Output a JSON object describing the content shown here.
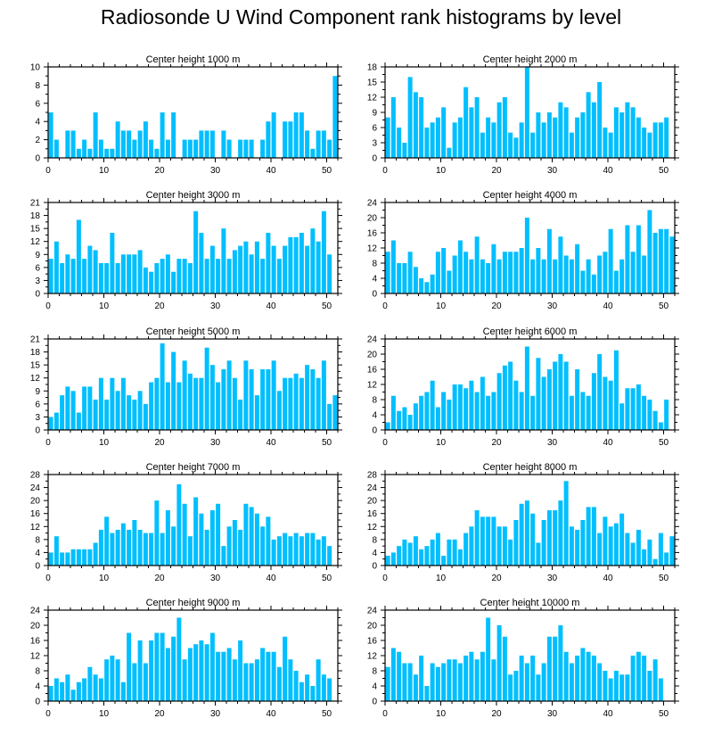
{
  "title": "Radiosonde U Wind Component rank histograms by level",
  "colors": {
    "bar": "#00BFFF",
    "axis": "#000000",
    "background": "#FFFFFF"
  },
  "chart_data": [
    {
      "type": "bar",
      "title": "Center height 1000 m",
      "xlim": [
        0,
        52
      ],
      "ylim": [
        0,
        10
      ],
      "xticks": [
        0,
        10,
        20,
        30,
        40,
        50
      ],
      "yticks": [
        0,
        2,
        4,
        6,
        8,
        10
      ],
      "values": [
        5,
        2,
        0,
        3,
        3,
        1,
        2,
        1,
        5,
        2,
        1,
        1,
        4,
        3,
        3,
        2,
        3,
        4,
        2,
        1,
        5,
        2,
        5,
        0,
        2,
        2,
        2,
        3,
        3,
        3,
        0,
        3,
        2,
        0,
        2,
        2,
        2,
        0,
        2,
        4,
        5,
        0,
        4,
        4,
        5,
        5,
        3,
        1,
        3,
        3,
        2,
        9
      ]
    },
    {
      "type": "bar",
      "title": "Center height 2000 m",
      "xlim": [
        0,
        52
      ],
      "ylim": [
        0,
        18
      ],
      "xticks": [
        0,
        10,
        20,
        30,
        40,
        50
      ],
      "yticks": [
        0,
        3,
        6,
        9,
        12,
        15,
        18
      ],
      "values": [
        8,
        12,
        6,
        3,
        16,
        13,
        12,
        6,
        7,
        8,
        10,
        2,
        7,
        8,
        14,
        10,
        12,
        5,
        8,
        7,
        11,
        12,
        5,
        4,
        7,
        18,
        5,
        9,
        7,
        9,
        8,
        11,
        10,
        5,
        8,
        9,
        13,
        11,
        15,
        6,
        5,
        10,
        9,
        11,
        10,
        8,
        6,
        5,
        7,
        7,
        8,
        0
      ]
    },
    {
      "type": "bar",
      "title": "Center height 3000 m",
      "xlim": [
        0,
        52
      ],
      "ylim": [
        0,
        21
      ],
      "xticks": [
        0,
        10,
        20,
        30,
        40,
        50
      ],
      "yticks": [
        0,
        3,
        6,
        9,
        12,
        15,
        18,
        21
      ],
      "values": [
        8,
        12,
        7,
        9,
        8,
        17,
        8,
        11,
        10,
        7,
        7,
        14,
        7,
        9,
        9,
        9,
        10,
        6,
        5,
        7,
        8,
        9,
        5,
        8,
        8,
        7,
        19,
        14,
        8,
        11,
        8,
        15,
        8,
        10,
        11,
        12,
        9,
        12,
        8,
        14,
        11,
        8,
        11,
        13,
        13,
        14,
        11,
        15,
        12,
        19,
        9,
        0
      ]
    },
    {
      "type": "bar",
      "title": "Center height 4000 m",
      "xlim": [
        0,
        52
      ],
      "ylim": [
        0,
        24
      ],
      "xticks": [
        0,
        10,
        20,
        30,
        40,
        50
      ],
      "yticks": [
        0,
        4,
        8,
        12,
        16,
        20,
        24
      ],
      "values": [
        11,
        14,
        8,
        8,
        11,
        7,
        4,
        3,
        5,
        11,
        12,
        6,
        10,
        14,
        11,
        9,
        15,
        9,
        8,
        13,
        9,
        11,
        11,
        11,
        12,
        20,
        9,
        12,
        9,
        17,
        9,
        15,
        10,
        9,
        13,
        6,
        9,
        5,
        10,
        11,
        17,
        6,
        9,
        18,
        11,
        18,
        10,
        22,
        16,
        17,
        17,
        15
      ]
    },
    {
      "type": "bar",
      "title": "Center height 5000 m",
      "xlim": [
        0,
        52
      ],
      "ylim": [
        0,
        21
      ],
      "xticks": [
        0,
        10,
        20,
        30,
        40,
        50
      ],
      "yticks": [
        0,
        3,
        6,
        9,
        12,
        15,
        18,
        21
      ],
      "values": [
        3,
        4,
        8,
        10,
        9,
        4,
        10,
        10,
        7,
        12,
        7,
        12,
        9,
        12,
        8,
        7,
        9,
        6,
        11,
        12,
        20,
        11,
        18,
        11,
        16,
        13,
        12,
        12,
        19,
        15,
        11,
        14,
        16,
        12,
        7,
        16,
        14,
        8,
        14,
        14,
        16,
        9,
        12,
        12,
        13,
        12,
        15,
        14,
        12,
        16,
        6,
        8
      ]
    },
    {
      "type": "bar",
      "title": "Center height 6000 m",
      "xlim": [
        0,
        52
      ],
      "ylim": [
        0,
        24
      ],
      "xticks": [
        0,
        10,
        20,
        30,
        40,
        50
      ],
      "yticks": [
        0,
        4,
        8,
        12,
        16,
        20,
        24
      ],
      "values": [
        2,
        9,
        5,
        6,
        4,
        7,
        9,
        10,
        13,
        6,
        10,
        8,
        12,
        12,
        11,
        13,
        10,
        14,
        9,
        10,
        15,
        17,
        18,
        13,
        10,
        22,
        9,
        19,
        14,
        16,
        18,
        20,
        18,
        9,
        16,
        10,
        9,
        15,
        20,
        14,
        13,
        21,
        7,
        11,
        11,
        12,
        9,
        8,
        5,
        2,
        8,
        0
      ]
    },
    {
      "type": "bar",
      "title": "Center height 7000 m",
      "xlim": [
        0,
        52
      ],
      "ylim": [
        0,
        28
      ],
      "xticks": [
        0,
        10,
        20,
        30,
        40,
        50
      ],
      "yticks": [
        0,
        4,
        8,
        12,
        16,
        20,
        24,
        28
      ],
      "values": [
        4,
        9,
        4,
        4,
        5,
        5,
        5,
        5,
        7,
        11,
        15,
        10,
        11,
        13,
        11,
        14,
        11,
        10,
        10,
        20,
        10,
        17,
        12,
        25,
        19,
        9,
        21,
        16,
        11,
        17,
        19,
        6,
        12,
        14,
        11,
        19,
        18,
        16,
        12,
        15,
        8,
        9,
        10,
        9,
        10,
        9,
        10,
        10,
        8,
        9,
        6,
        0
      ]
    },
    {
      "type": "bar",
      "title": "Center height 8000 m",
      "xlim": [
        0,
        52
      ],
      "ylim": [
        0,
        28
      ],
      "xticks": [
        0,
        10,
        20,
        30,
        40,
        50
      ],
      "yticks": [
        0,
        4,
        8,
        12,
        16,
        20,
        24,
        28
      ],
      "values": [
        3,
        4,
        6,
        8,
        7,
        9,
        5,
        6,
        8,
        10,
        3,
        8,
        8,
        5,
        10,
        12,
        17,
        15,
        15,
        15,
        12,
        12,
        8,
        14,
        19,
        20,
        16,
        7,
        14,
        17,
        17,
        20,
        26,
        12,
        11,
        14,
        18,
        18,
        10,
        15,
        12,
        13,
        16,
        10,
        7,
        11,
        5,
        8,
        2,
        10,
        4,
        9
      ]
    },
    {
      "type": "bar",
      "title": "Center height 9000 m",
      "xlim": [
        0,
        52
      ],
      "ylim": [
        0,
        24
      ],
      "xticks": [
        0,
        10,
        20,
        30,
        40,
        50
      ],
      "yticks": [
        0,
        4,
        8,
        12,
        16,
        20,
        24
      ],
      "values": [
        4,
        6,
        5,
        7,
        3,
        5,
        6,
        9,
        7,
        6,
        11,
        12,
        11,
        5,
        18,
        10,
        16,
        10,
        16,
        18,
        18,
        14,
        17,
        22,
        11,
        14,
        15,
        16,
        15,
        18,
        13,
        13,
        14,
        11,
        16,
        10,
        10,
        11,
        14,
        13,
        13,
        9,
        17,
        11,
        8,
        5,
        7,
        4,
        11,
        7,
        6,
        0
      ]
    },
    {
      "type": "bar",
      "title": "Center height 10000 m",
      "xlim": [
        0,
        52
      ],
      "ylim": [
        0,
        24
      ],
      "xticks": [
        0,
        10,
        20,
        30,
        40,
        50
      ],
      "yticks": [
        0,
        4,
        8,
        12,
        16,
        20,
        24
      ],
      "values": [
        9,
        14,
        13,
        10,
        10,
        7,
        12,
        4,
        10,
        9,
        10,
        11,
        11,
        10,
        12,
        13,
        11,
        13,
        22,
        11,
        20,
        17,
        7,
        8,
        12,
        10,
        12,
        7,
        10,
        17,
        17,
        20,
        13,
        10,
        12,
        14,
        13,
        12,
        10,
        8,
        6,
        8,
        7,
        7,
        12,
        13,
        12,
        8,
        11,
        6,
        0,
        0
      ]
    }
  ]
}
